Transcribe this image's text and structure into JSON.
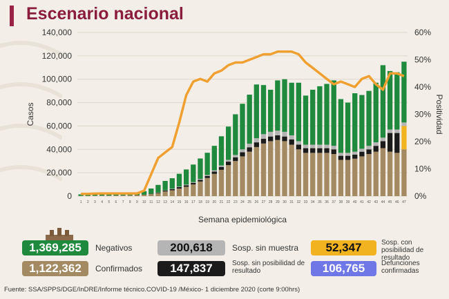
{
  "header": {
    "title": "Escenario nacional"
  },
  "chart_data": {
    "type": "bar",
    "categories": [
      "1",
      "2",
      "3",
      "4",
      "5",
      "6",
      "7",
      "8",
      "9",
      "10",
      "11",
      "12",
      "13",
      "14",
      "15",
      "16",
      "17",
      "18",
      "19",
      "20",
      "21",
      "22",
      "23",
      "24",
      "25",
      "26",
      "27",
      "28",
      "29",
      "30",
      "31",
      "32",
      "33",
      "34",
      "35",
      "36",
      "37",
      "38",
      "39",
      "40",
      "41",
      "42",
      "43",
      "44",
      "45",
      "46",
      "47"
    ],
    "xlabel": "Semana epidemiológica",
    "ylabel": "Casos",
    "y2label": "Positividad",
    "ylim": [
      0,
      140000
    ],
    "y2lim": [
      0,
      60
    ],
    "yticks": [
      "0",
      "20,000",
      "40,000",
      "60,000",
      "80,000",
      "100,000",
      "120,000",
      "140,000"
    ],
    "y2ticks": [
      "0%",
      "10%",
      "20%",
      "30%",
      "40%",
      "50%",
      "60%"
    ],
    "series": [
      {
        "name": "Confirmados",
        "color": "#a48a62",
        "values": [
          200,
          300,
          400,
          500,
          500,
          600,
          700,
          800,
          900,
          1200,
          1800,
          2600,
          4000,
          5000,
          6500,
          8000,
          10000,
          12500,
          15500,
          19000,
          22500,
          26500,
          30000,
          34000,
          38000,
          42000,
          45000,
          47000,
          48000,
          47000,
          44000,
          40000,
          37000,
          37000,
          37000,
          37000,
          36000,
          31000,
          31000,
          32000,
          34000,
          36000,
          38000,
          41000,
          38000,
          37000,
          40000
        ]
      },
      {
        "name": "Sosp. sin posibilidad de resultado",
        "color": "#1b1b1b",
        "values": [
          0,
          0,
          0,
          0,
          0,
          0,
          0,
          0,
          0,
          0,
          200,
          400,
          800,
          1000,
          1200,
          1300,
          1400,
          1500,
          1800,
          2000,
          2500,
          3000,
          3200,
          3500,
          3800,
          4000,
          4000,
          4000,
          4000,
          4000,
          4500,
          4000,
          4000,
          4000,
          4000,
          4000,
          4000,
          3500,
          3500,
          3500,
          4000,
          4000,
          5000,
          6000,
          16000,
          17000,
          0
        ]
      },
      {
        "name": "Sosp. con posibilidad de resultado",
        "color": "#f2b320",
        "values": [
          0,
          0,
          0,
          0,
          0,
          0,
          0,
          0,
          0,
          0,
          0,
          0,
          0,
          0,
          0,
          0,
          0,
          0,
          0,
          0,
          0,
          0,
          0,
          0,
          0,
          0,
          0,
          0,
          0,
          0,
          0,
          0,
          0,
          0,
          0,
          0,
          0,
          0,
          0,
          0,
          0,
          0,
          0,
          0,
          0,
          0,
          20000
        ]
      },
      {
        "name": "Sosp. sin muestra",
        "color": "#b5b5b5",
        "values": [
          0,
          0,
          0,
          0,
          0,
          0,
          0,
          0,
          0,
          0,
          0,
          100,
          200,
          300,
          400,
          500,
          600,
          700,
          800,
          1000,
          1200,
          1500,
          2000,
          2500,
          3000,
          3500,
          4000,
          4000,
          4000,
          4000,
          3500,
          3000,
          3000,
          3000,
          3000,
          3000,
          3000,
          2500,
          2500,
          2500,
          2500,
          3000,
          3000,
          3000,
          3000,
          3000,
          3000
        ]
      },
      {
        "name": "Negativos",
        "color": "#1f8a3d",
        "values": [
          1300,
          1500,
          1700,
          1800,
          1900,
          2000,
          2000,
          2100,
          2300,
          3000,
          4500,
          6500,
          8000,
          9000,
          11000,
          13000,
          15000,
          17500,
          19000,
          21000,
          25000,
          28500,
          34800,
          39000,
          42000,
          46000,
          42000,
          36000,
          43000,
          45000,
          45000,
          50000,
          42000,
          47000,
          50000,
          52000,
          56000,
          46000,
          43000,
          50000,
          46000,
          47000,
          51000,
          62000,
          50000,
          49000,
          52000
        ]
      }
    ],
    "positivity": {
      "name": "Positividad",
      "color": "#f0a030",
      "values": [
        0.8,
        0.8,
        0.9,
        1,
        1,
        1,
        1,
        1,
        1,
        2,
        8,
        14,
        16,
        18,
        27,
        37,
        42,
        43,
        42,
        45,
        46,
        48,
        49,
        49,
        50,
        51,
        52,
        52,
        53,
        53,
        53,
        52,
        49,
        47,
        45,
        43,
        41,
        42,
        41,
        40,
        43,
        44,
        41,
        39,
        45,
        45,
        44
      ]
    }
  },
  "stats": [
    {
      "value": "1,369,285",
      "label": "Negativos",
      "color": "#1f8a3d"
    },
    {
      "value": "200,618",
      "label": "Sosp. sin muestra",
      "color": "#b5b5b5"
    },
    {
      "value": "52,347",
      "label": "Sosp. con posibilidad de resultado",
      "color": "#f2b320"
    },
    {
      "value": "1,122,362",
      "label": "Confirmados",
      "color": "#a48a62"
    },
    {
      "value": "147,837",
      "label": "Sosp. sin posibilidad de resultado",
      "color": "#1b1b1b"
    },
    {
      "value": "106,765",
      "label": "Defunciones confirmadas",
      "color": "#6f77e6"
    }
  ],
  "source": "Fuente: SSA/SPPS/DGE/InDRE/Informe técnico.COVID-19 /México- 1 diciembre 2020 (corte 9:00hrs)"
}
